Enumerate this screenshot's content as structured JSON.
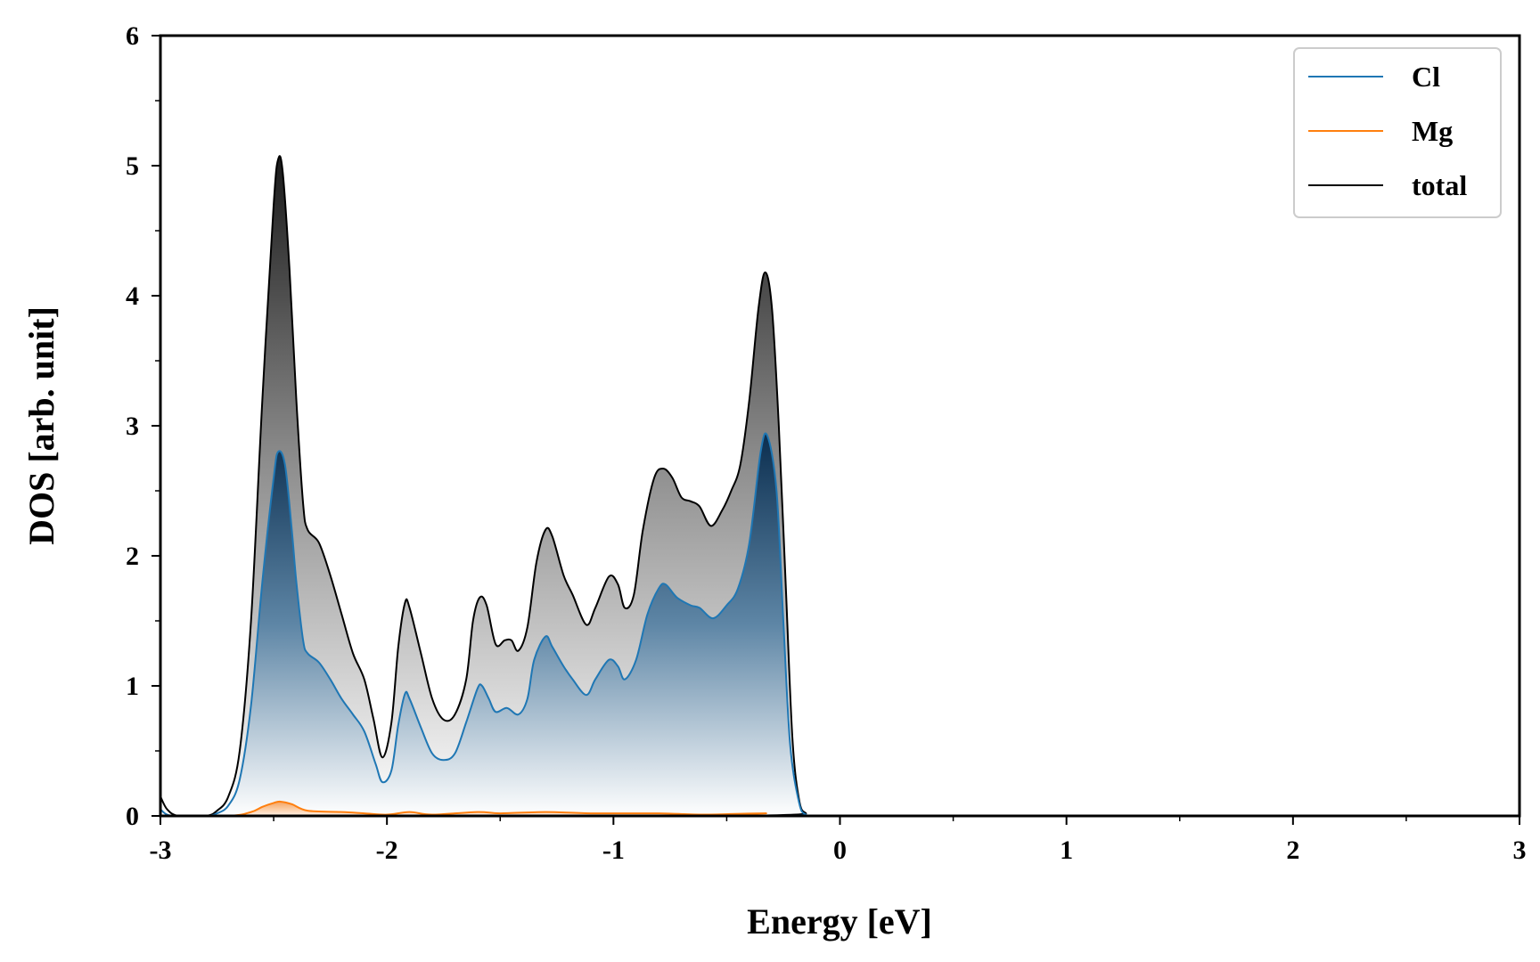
{
  "chart_data": {
    "type": "area",
    "xlabel": "Energy [eV]",
    "ylabel": "DOS [arb. unit]",
    "xlim": [
      -3,
      3
    ],
    "ylim": [
      0,
      6
    ],
    "xticks": [
      "-3",
      "-2",
      "-1",
      "0",
      "1",
      "2",
      "3"
    ],
    "yticks": [
      "0",
      "1",
      "2",
      "3",
      "4",
      "5",
      "6"
    ],
    "grid": false,
    "legend_position": "top-right",
    "series": [
      {
        "name": "Cl",
        "color": "#1f77b4",
        "fill": "gradient-navy",
        "points": [
          [
            -3.0,
            0.05
          ],
          [
            -2.95,
            0.0
          ],
          [
            -2.8,
            0.0
          ],
          [
            -2.75,
            0.02
          ],
          [
            -2.7,
            0.08
          ],
          [
            -2.65,
            0.28
          ],
          [
            -2.6,
            0.85
          ],
          [
            -2.55,
            1.8
          ],
          [
            -2.5,
            2.6
          ],
          [
            -2.48,
            2.8
          ],
          [
            -2.45,
            2.7
          ],
          [
            -2.42,
            2.2
          ],
          [
            -2.4,
            1.8
          ],
          [
            -2.37,
            1.35
          ],
          [
            -2.35,
            1.25
          ],
          [
            -2.3,
            1.18
          ],
          [
            -2.25,
            1.05
          ],
          [
            -2.2,
            0.9
          ],
          [
            -2.15,
            0.78
          ],
          [
            -2.1,
            0.65
          ],
          [
            -2.05,
            0.4
          ],
          [
            -2.02,
            0.26
          ],
          [
            -1.98,
            0.35
          ],
          [
            -1.95,
            0.7
          ],
          [
            -1.92,
            0.94
          ],
          [
            -1.9,
            0.9
          ],
          [
            -1.85,
            0.68
          ],
          [
            -1.8,
            0.48
          ],
          [
            -1.75,
            0.43
          ],
          [
            -1.7,
            0.48
          ],
          [
            -1.65,
            0.72
          ],
          [
            -1.6,
            0.98
          ],
          [
            -1.58,
            1.0
          ],
          [
            -1.55,
            0.9
          ],
          [
            -1.52,
            0.8
          ],
          [
            -1.47,
            0.83
          ],
          [
            -1.42,
            0.78
          ],
          [
            -1.38,
            0.9
          ],
          [
            -1.35,
            1.2
          ],
          [
            -1.3,
            1.38
          ],
          [
            -1.27,
            1.3
          ],
          [
            -1.22,
            1.15
          ],
          [
            -1.18,
            1.05
          ],
          [
            -1.12,
            0.93
          ],
          [
            -1.08,
            1.05
          ],
          [
            -1.02,
            1.2
          ],
          [
            -0.98,
            1.15
          ],
          [
            -0.95,
            1.05
          ],
          [
            -0.9,
            1.2
          ],
          [
            -0.85,
            1.55
          ],
          [
            -0.8,
            1.75
          ],
          [
            -0.77,
            1.78
          ],
          [
            -0.72,
            1.68
          ],
          [
            -0.66,
            1.62
          ],
          [
            -0.62,
            1.6
          ],
          [
            -0.56,
            1.52
          ],
          [
            -0.5,
            1.62
          ],
          [
            -0.45,
            1.75
          ],
          [
            -0.4,
            2.1
          ],
          [
            -0.35,
            2.8
          ],
          [
            -0.32,
            2.92
          ],
          [
            -0.28,
            2.5
          ],
          [
            -0.25,
            1.5
          ],
          [
            -0.22,
            0.55
          ],
          [
            -0.18,
            0.1
          ],
          [
            -0.15,
            0.01
          ],
          [
            -0.1,
            0.0
          ],
          [
            3.0,
            0.0
          ]
        ]
      },
      {
        "name": "Mg",
        "color": "#ff7f0e",
        "fill": "gradient-orange",
        "points": [
          [
            -3.0,
            0.0
          ],
          [
            -2.7,
            0.0
          ],
          [
            -2.6,
            0.03
          ],
          [
            -2.55,
            0.07
          ],
          [
            -2.5,
            0.1
          ],
          [
            -2.47,
            0.11
          ],
          [
            -2.42,
            0.09
          ],
          [
            -2.35,
            0.04
          ],
          [
            -2.2,
            0.03
          ],
          [
            -2.1,
            0.02
          ],
          [
            -2.0,
            0.01
          ],
          [
            -1.9,
            0.03
          ],
          [
            -1.8,
            0.01
          ],
          [
            -1.6,
            0.03
          ],
          [
            -1.5,
            0.02
          ],
          [
            -1.3,
            0.03
          ],
          [
            -1.1,
            0.02
          ],
          [
            -0.8,
            0.02
          ],
          [
            -0.6,
            0.01
          ],
          [
            -0.33,
            0.02
          ],
          [
            -0.25,
            0.0
          ],
          [
            3.0,
            0.0
          ]
        ]
      },
      {
        "name": "total",
        "color": "#000000",
        "fill": "gradient-gray",
        "points": [
          [
            -3.0,
            0.15
          ],
          [
            -2.97,
            0.05
          ],
          [
            -2.92,
            0.0
          ],
          [
            -2.8,
            0.0
          ],
          [
            -2.75,
            0.04
          ],
          [
            -2.7,
            0.15
          ],
          [
            -2.65,
            0.5
          ],
          [
            -2.6,
            1.5
          ],
          [
            -2.55,
            3.2
          ],
          [
            -2.5,
            4.7
          ],
          [
            -2.48,
            5.05
          ],
          [
            -2.46,
            4.95
          ],
          [
            -2.43,
            4.2
          ],
          [
            -2.4,
            3.2
          ],
          [
            -2.37,
            2.4
          ],
          [
            -2.35,
            2.2
          ],
          [
            -2.3,
            2.1
          ],
          [
            -2.25,
            1.85
          ],
          [
            -2.2,
            1.55
          ],
          [
            -2.15,
            1.25
          ],
          [
            -2.1,
            1.05
          ],
          [
            -2.06,
            0.75
          ],
          [
            -2.02,
            0.45
          ],
          [
            -1.98,
            0.72
          ],
          [
            -1.95,
            1.3
          ],
          [
            -1.92,
            1.64
          ],
          [
            -1.9,
            1.6
          ],
          [
            -1.85,
            1.25
          ],
          [
            -1.8,
            0.9
          ],
          [
            -1.75,
            0.74
          ],
          [
            -1.7,
            0.78
          ],
          [
            -1.65,
            1.05
          ],
          [
            -1.62,
            1.5
          ],
          [
            -1.59,
            1.68
          ],
          [
            -1.56,
            1.62
          ],
          [
            -1.52,
            1.32
          ],
          [
            -1.48,
            1.35
          ],
          [
            -1.45,
            1.35
          ],
          [
            -1.42,
            1.27
          ],
          [
            -1.38,
            1.45
          ],
          [
            -1.34,
            1.95
          ],
          [
            -1.3,
            2.2
          ],
          [
            -1.27,
            2.15
          ],
          [
            -1.22,
            1.85
          ],
          [
            -1.18,
            1.7
          ],
          [
            -1.12,
            1.47
          ],
          [
            -1.08,
            1.6
          ],
          [
            -1.02,
            1.84
          ],
          [
            -0.98,
            1.78
          ],
          [
            -0.95,
            1.6
          ],
          [
            -0.91,
            1.7
          ],
          [
            -0.87,
            2.2
          ],
          [
            -0.82,
            2.6
          ],
          [
            -0.78,
            2.67
          ],
          [
            -0.74,
            2.6
          ],
          [
            -0.7,
            2.45
          ],
          [
            -0.66,
            2.42
          ],
          [
            -0.62,
            2.38
          ],
          [
            -0.57,
            2.23
          ],
          [
            -0.52,
            2.35
          ],
          [
            -0.48,
            2.5
          ],
          [
            -0.44,
            2.7
          ],
          [
            -0.4,
            3.2
          ],
          [
            -0.36,
            3.9
          ],
          [
            -0.33,
            4.18
          ],
          [
            -0.3,
            3.9
          ],
          [
            -0.27,
            3.0
          ],
          [
            -0.24,
            1.8
          ],
          [
            -0.21,
            0.6
          ],
          [
            -0.18,
            0.12
          ],
          [
            -0.15,
            0.02
          ],
          [
            -0.1,
            0.0
          ],
          [
            3.0,
            0.0
          ]
        ]
      }
    ]
  }
}
